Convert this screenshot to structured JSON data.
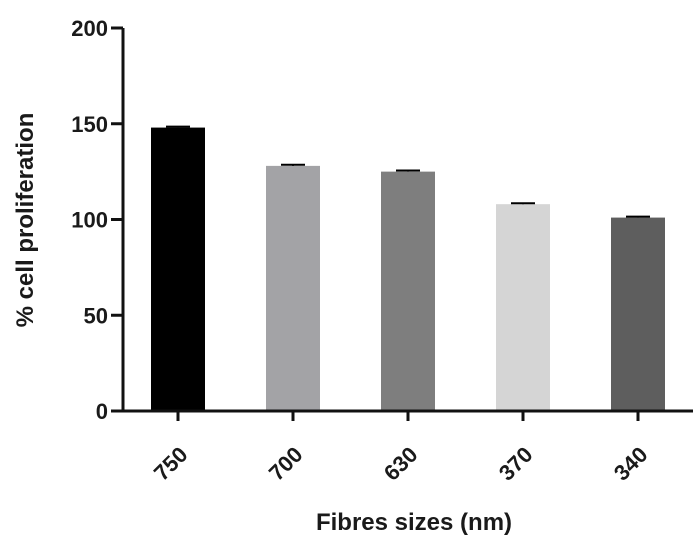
{
  "chart_data": {
    "type": "bar",
    "title": "",
    "xlabel": "Fibres sizes (nm)",
    "ylabel": "% cell proliferation",
    "categories": [
      "750",
      "700",
      "630",
      "370",
      "340"
    ],
    "values": [
      148,
      128,
      125,
      108,
      101
    ],
    "errors": [
      0.5,
      0.6,
      0.6,
      0.5,
      0.5
    ],
    "colors": [
      "#000000",
      "#a3a3a6",
      "#7e7e7e",
      "#d5d5d5",
      "#5e5e5e"
    ],
    "ylim": [
      0,
      200
    ],
    "yticks": [
      0,
      50,
      100,
      150,
      200
    ],
    "grid": false,
    "legend": "none"
  }
}
